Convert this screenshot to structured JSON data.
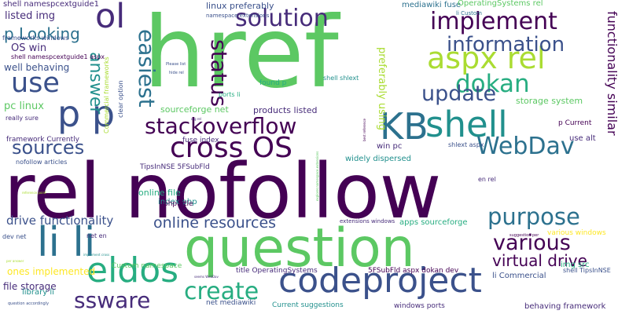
{
  "palette": {
    "background": "#ffffff",
    "dark_purple": "#440154",
    "purple": "#472c7a",
    "indigo": "#3b518b",
    "blue": "#2c718e",
    "teal": "#21908d",
    "green_teal": "#27ad81",
    "green": "#5cc863",
    "light_green": "#aadc32",
    "yellow": "#fde725"
  },
  "words": [
    {
      "text": "href",
      "color": "#5cc863"
    },
    {
      "text": "rel nofollow",
      "color": "#440154"
    },
    {
      "text": "question",
      "color": "#5cc863"
    },
    {
      "text": "codeproject",
      "color": "#3b518b"
    },
    {
      "text": "KB",
      "color": "#2c718e"
    },
    {
      "text": "shell",
      "color": "#21908d"
    },
    {
      "text": "li li",
      "color": "#2c718e"
    },
    {
      "text": "p p",
      "color": "#3b518b"
    },
    {
      "text": "ol",
      "color": "#472c7a"
    },
    {
      "text": "aspx rel",
      "color": "#aadc32"
    },
    {
      "text": "use",
      "color": "#3b518b"
    },
    {
      "text": "cross OS",
      "color": "#440154"
    },
    {
      "text": "eldos",
      "color": "#27ad81"
    },
    {
      "text": "stackoverflow",
      "color": "#440154"
    },
    {
      "text": "solution",
      "color": "#472c7a"
    },
    {
      "text": "implement",
      "color": "#440154"
    },
    {
      "text": "information",
      "color": "#3b518b"
    },
    {
      "text": "dokan",
      "color": "#27ad81"
    },
    {
      "text": "update",
      "color": "#3b518b"
    },
    {
      "text": "WebDav",
      "color": "#2c718e"
    },
    {
      "text": "purpose",
      "color": "#2c718e"
    },
    {
      "text": "various",
      "color": "#440154"
    },
    {
      "text": "create",
      "color": "#27ad81"
    },
    {
      "text": "status",
      "color": "#440154"
    },
    {
      "text": "easiest",
      "color": "#2c718e"
    },
    {
      "text": "answer",
      "color": "#21908d"
    },
    {
      "text": "sources",
      "color": "#3b518b"
    },
    {
      "text": "ssware",
      "color": "#472c7a"
    },
    {
      "text": "virtual drive",
      "color": "#440154"
    },
    {
      "text": "online resources",
      "color": "#3b518b"
    },
    {
      "text": "drive functionality",
      "color": "#3b518b"
    },
    {
      "text": "functionality similar",
      "color": "#440154"
    },
    {
      "text": "p Looking",
      "color": "#2c718e"
    },
    {
      "text": "shell namespcextguide1",
      "color": "#472c7a"
    },
    {
      "text": "listed img",
      "color": "#472c7a"
    },
    {
      "text": "OS win",
      "color": "#472c7a"
    },
    {
      "text": "well behaving",
      "color": "#3b518b"
    },
    {
      "text": "pc linux",
      "color": "#5cc863"
    },
    {
      "text": "file storage",
      "color": "#472c7a"
    },
    {
      "text": "products listed",
      "color": "#472c7a"
    },
    {
      "text": "storage system",
      "color": "#5cc863"
    },
    {
      "text": "sourceforge net",
      "color": "#5cc863"
    },
    {
      "text": "linux preferably",
      "color": "#3b518b"
    },
    {
      "text": "mediawiki fuse",
      "color": "#2c718e"
    },
    {
      "text": "OperatingSystems rel",
      "color": "#5cc863"
    },
    {
      "text": "ones implemented",
      "color": "#fde725"
    },
    {
      "text": "online file",
      "color": "#27ad81"
    },
    {
      "text": "index php",
      "color": "#21908d"
    },
    {
      "text": "widely dispersed",
      "color": "#21908d"
    },
    {
      "text": "win pc",
      "color": "#472c7a"
    },
    {
      "text": "use alt",
      "color": "#472c7a"
    },
    {
      "text": "fuse index",
      "color": "#472c7a"
    },
    {
      "text": "framework Currently",
      "color": "#472c7a"
    },
    {
      "text": "p Current",
      "color": "#440154"
    },
    {
      "text": "img src",
      "color": "#27ad81"
    },
    {
      "text": "li Commercial",
      "color": "#3b518b"
    },
    {
      "text": "net mediawiki",
      "color": "#3b518b"
    },
    {
      "text": "Current suggestions",
      "color": "#21908d"
    },
    {
      "text": "behaving framework",
      "color": "#472c7a"
    },
    {
      "text": "windows ports",
      "color": "#472c7a"
    },
    {
      "text": "5FSubFld aspx dokan dev",
      "color": "#440154"
    },
    {
      "text": "title OperatingSystems",
      "color": "#472c7a"
    },
    {
      "text": "library li",
      "color": "#21908d"
    },
    {
      "text": "Custom namespace",
      "color": "#5cc863"
    },
    {
      "text": "php title",
      "color": "#440154"
    },
    {
      "text": "TipsInNSE 5FSubFld",
      "color": "#472c7a"
    },
    {
      "text": "shell namespcextguide1 aspx",
      "color": "#440154"
    },
    {
      "text": "frameworks windows",
      "color": "#3b518b"
    },
    {
      "text": "namespace extensions",
      "color": "#3b518b"
    },
    {
      "text": "li Custom",
      "color": "#2c718e"
    },
    {
      "text": "preferably using",
      "color": "#aadc32"
    },
    {
      "text": "shell shlext",
      "color": "#21908d"
    },
    {
      "text": "shlext aspx",
      "color": "#3b518b"
    },
    {
      "text": "en rel",
      "color": "#472c7a"
    },
    {
      "text": "found p",
      "color": "#27ad81"
    },
    {
      "text": "ports li",
      "color": "#27ad81"
    },
    {
      "text": "really sure",
      "color": "#472c7a"
    },
    {
      "text": "nofollow articles",
      "color": "#3b518b"
    },
    {
      "text": "dev net",
      "color": "#3b518b"
    },
    {
      "text": "net en",
      "color": "#472c7a"
    },
    {
      "text": "clear option",
      "color": "#3b518b"
    },
    {
      "text": "Commercial frameworks",
      "color": "#aadc32"
    },
    {
      "text": "apps sourceforge",
      "color": "#27ad81"
    },
    {
      "text": "extensions windows",
      "color": "#472c7a"
    },
    {
      "text": "various windows",
      "color": "#fde725"
    },
    {
      "text": "shell TipsInNSE",
      "color": "#3b518b"
    },
    {
      "text": "Please list",
      "color": "#3b518b"
    },
    {
      "text": "hide rel",
      "color": "#3b518b"
    },
    {
      "text": "org rel",
      "color": "#472c7a"
    },
    {
      "text": "suggestion per",
      "color": "#440154"
    },
    {
      "text": "implement cross",
      "color": "#21908d"
    },
    {
      "text": "per answer",
      "color": "#aadc32"
    },
    {
      "text": "reference point",
      "color": "#aadc32"
    },
    {
      "text": "seems WebDav",
      "color": "#472c7a"
    },
    {
      "text": "question accordingly",
      "color": "#3b518b"
    },
    {
      "text": "best reference",
      "color": "#440154"
    },
    {
      "text": "explorer.namespace.extensions",
      "color": "#5cc863"
    }
  ]
}
